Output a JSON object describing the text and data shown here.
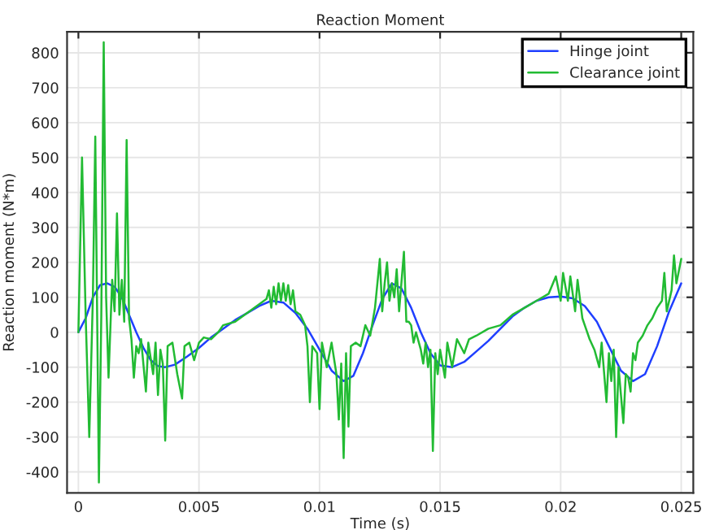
{
  "chart_data": {
    "type": "line",
    "title": "Reaction Moment",
    "xlabel": "Time (s)",
    "ylabel": "Reaction moment (N*m)",
    "xlim": [
      -0.00047,
      0.0255
    ],
    "ylim": [
      -460,
      860
    ],
    "xticks": [
      0,
      0.005,
      {
        "value": 0.01,
        "label": "0.01"
      },
      0.015,
      {
        "value": 0.02,
        "label": "0.02"
      },
      0.025
    ],
    "yticks": [
      -400,
      -300,
      -200,
      -100,
      0,
      100,
      200,
      300,
      400,
      500,
      600,
      700,
      800
    ],
    "grid": true,
    "legend": "top right",
    "line_style": "solid",
    "marker": "none",
    "series": [
      {
        "name": "Hinge joint",
        "color": "#1f3fff",
        "x": [
          0,
          0.0003,
          0.0006,
          0.0009,
          0.0012,
          0.0015,
          0.0018,
          0.0021,
          0.0024,
          0.0027,
          0.003,
          0.0033,
          0.0036,
          0.004,
          0.0045,
          0.005,
          0.0055,
          0.006,
          0.0065,
          0.007,
          0.0075,
          0.008,
          0.0085,
          0.009,
          0.0095,
          0.01,
          0.0105,
          0.011,
          0.0114,
          0.0118,
          0.0122,
          0.0126,
          0.013,
          0.0134,
          0.0138,
          0.0142,
          0.0146,
          0.015,
          0.0155,
          0.016,
          0.0165,
          0.017,
          0.0175,
          0.018,
          0.0185,
          0.019,
          0.0195,
          0.02,
          0.0205,
          0.021,
          0.0215,
          0.022,
          0.0225,
          0.023,
          0.0235,
          0.024,
          0.0245,
          0.025
        ],
        "values": [
          0,
          40,
          100,
          135,
          140,
          130,
          100,
          50,
          0,
          -45,
          -80,
          -97,
          -100,
          -93,
          -70,
          -45,
          -15,
          10,
          35,
          55,
          75,
          90,
          85,
          55,
          10,
          -50,
          -110,
          -140,
          -125,
          -60,
          20,
          95,
          140,
          125,
          70,
          0,
          -60,
          -95,
          -100,
          -85,
          -55,
          -25,
          10,
          45,
          70,
          90,
          100,
          102,
          97,
          75,
          30,
          -40,
          -110,
          -140,
          -120,
          -40,
          60,
          140
        ]
      },
      {
        "name": "Clearance joint",
        "color": "#22bb33",
        "x": [
          0,
          0.00015,
          0.0003,
          0.00045,
          0.0006,
          0.0007,
          0.00085,
          0.00095,
          0.00105,
          0.00115,
          0.00125,
          0.0014,
          0.0015,
          0.0016,
          0.0017,
          0.0018,
          0.0019,
          0.002,
          0.0021,
          0.0022,
          0.0023,
          0.0024,
          0.0025,
          0.0026,
          0.0028,
          0.0029,
          0.0031,
          0.0032,
          0.0033,
          0.0034,
          0.0035,
          0.0036,
          0.0037,
          0.0039,
          0.0041,
          0.0043,
          0.0044,
          0.0046,
          0.0048,
          0.005,
          0.0052,
          0.0055,
          0.0058,
          0.006,
          0.0065,
          0.007,
          0.0075,
          0.0078,
          0.0079,
          0.008,
          0.0081,
          0.0082,
          0.0083,
          0.0084,
          0.0085,
          0.0086,
          0.0087,
          0.0088,
          0.0089,
          0.009,
          0.0092,
          0.0094,
          0.0095,
          0.0096,
          0.0097,
          0.0099,
          0.01,
          0.0101,
          0.0103,
          0.0105,
          0.0107,
          0.0108,
          0.0109,
          0.011,
          0.0111,
          0.0112,
          0.0113,
          0.0115,
          0.0117,
          0.0119,
          0.0121,
          0.0123,
          0.0125,
          0.0126,
          0.0127,
          0.0128,
          0.0129,
          0.013,
          0.0131,
          0.0132,
          0.0133,
          0.0135,
          0.0136,
          0.0137,
          0.0138,
          0.0139,
          0.014,
          0.0142,
          0.0143,
          0.0144,
          0.0145,
          0.0146,
          0.0147,
          0.0148,
          0.0149,
          0.015,
          0.0152,
          0.0153,
          0.0155,
          0.0157,
          0.016,
          0.0162,
          0.0165,
          0.017,
          0.0175,
          0.018,
          0.0185,
          0.019,
          0.0195,
          0.0198,
          0.02,
          0.0201,
          0.0203,
          0.0204,
          0.0206,
          0.0207,
          0.0209,
          0.021,
          0.0212,
          0.0214,
          0.0216,
          0.0217,
          0.0219,
          0.022,
          0.0221,
          0.0222,
          0.0223,
          0.0224,
          0.0226,
          0.0227,
          0.0228,
          0.0229,
          0.023,
          0.0231,
          0.0232,
          0.0234,
          0.0236,
          0.0238,
          0.024,
          0.0242,
          0.0243,
          0.0244,
          0.0246,
          0.0247,
          0.0248,
          0.025
        ],
        "values": [
          0,
          500,
          50,
          -300,
          100,
          560,
          -430,
          50,
          830,
          100,
          -130,
          150,
          60,
          340,
          50,
          150,
          30,
          550,
          40,
          -20,
          -130,
          -40,
          -60,
          -20,
          -170,
          -30,
          -120,
          -30,
          -180,
          -50,
          -90,
          -310,
          -40,
          -30,
          -120,
          -190,
          -40,
          -30,
          -80,
          -30,
          -15,
          -20,
          0,
          20,
          30,
          55,
          80,
          95,
          120,
          70,
          130,
          80,
          140,
          90,
          140,
          90,
          135,
          80,
          120,
          60,
          50,
          20,
          -40,
          -200,
          -40,
          -60,
          -220,
          -30,
          -100,
          -30,
          -120,
          -250,
          -90,
          -360,
          -60,
          -270,
          -40,
          -30,
          -40,
          20,
          -10,
          70,
          210,
          60,
          140,
          200,
          90,
          140,
          100,
          180,
          60,
          230,
          30,
          30,
          20,
          -30,
          0,
          -50,
          -90,
          -30,
          -100,
          -50,
          -340,
          -60,
          -120,
          -50,
          -130,
          -30,
          -100,
          -20,
          -60,
          -20,
          -10,
          10,
          20,
          50,
          70,
          90,
          110,
          160,
          90,
          170,
          90,
          160,
          60,
          150,
          40,
          20,
          -20,
          -50,
          -100,
          -30,
          -200,
          -60,
          -140,
          -50,
          -300,
          -100,
          -260,
          -120,
          -130,
          -170,
          -60,
          -80,
          -30,
          -10,
          20,
          40,
          70,
          90,
          170,
          60,
          120,
          220,
          140,
          210
        ]
      }
    ]
  }
}
